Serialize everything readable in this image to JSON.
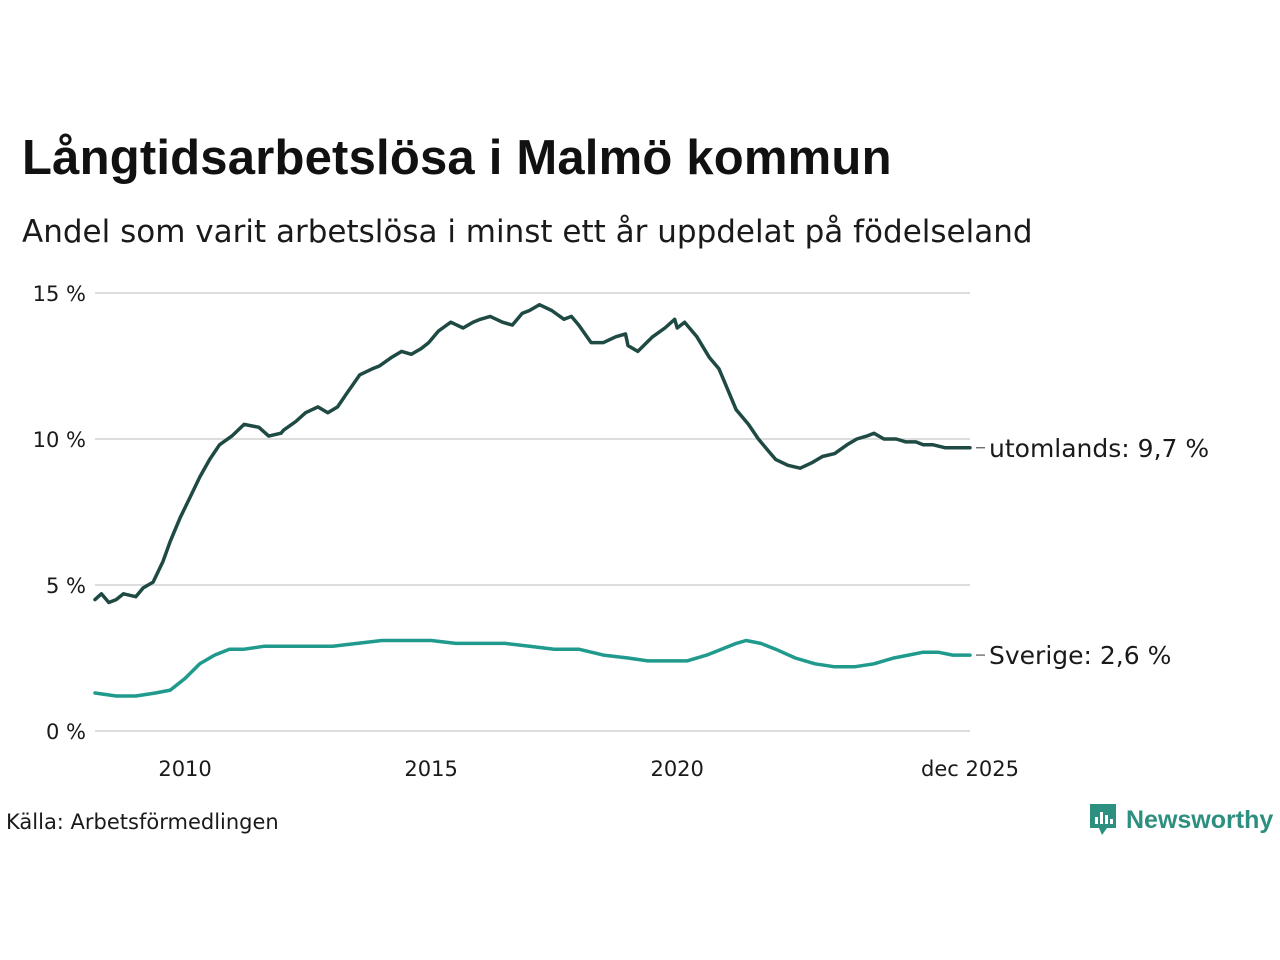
{
  "header": {
    "title": "Långtidsarbetslösa i Malmö kommun",
    "subtitle": "Andel som varit arbetslösa i minst ett år uppdelat på födelseland"
  },
  "footer": {
    "source": "Källa: Arbetsförmedlingen",
    "brand": "Newsworthy"
  },
  "colors": {
    "utomlands": "#1f4a44",
    "sverige": "#1f9a8c",
    "grid": "#dddddd",
    "brand": "#2d8f7f"
  },
  "chart_data": {
    "type": "line",
    "title": "Långtidsarbetslösa i Malmö kommun",
    "subtitle": "Andel som varit arbetslösa i minst ett år uppdelat på födelseland",
    "xlabel": "",
    "ylabel": "",
    "x_range": [
      2008.17,
      2025.95
    ],
    "ylim": [
      0,
      15
    ],
    "y_ticks": [
      {
        "value": 0,
        "label": "0 %"
      },
      {
        "value": 5,
        "label": "5 %"
      },
      {
        "value": 10,
        "label": "10 %"
      },
      {
        "value": 15,
        "label": "15 %"
      }
    ],
    "x_ticks": [
      {
        "value": 2010,
        "label": "2010"
      },
      {
        "value": 2015,
        "label": "2015"
      },
      {
        "value": 2020,
        "label": "2020"
      },
      {
        "value": 2025.95,
        "label": "dec 2025"
      }
    ],
    "grid": true,
    "series": [
      {
        "name": "utomlands",
        "end_label": "utomlands: 9,7 %",
        "x": [
          2008.17,
          2008.3,
          2008.45,
          2008.6,
          2008.75,
          2009.0,
          2009.15,
          2009.35,
          2009.55,
          2009.7,
          2009.9,
          2010.1,
          2010.3,
          2010.5,
          2010.7,
          2010.95,
          2011.2,
          2011.5,
          2011.7,
          2011.95,
          2012.0,
          2012.25,
          2012.45,
          2012.7,
          2012.9,
          2013.1,
          2013.3,
          2013.55,
          2013.8,
          2013.95,
          2014.2,
          2014.4,
          2014.6,
          2014.8,
          2014.95,
          2015.15,
          2015.4,
          2015.65,
          2015.85,
          2016.0,
          2016.2,
          2016.45,
          2016.65,
          2016.85,
          2017.0,
          2017.2,
          2017.45,
          2017.7,
          2017.85,
          2018.0,
          2018.25,
          2018.5,
          2018.75,
          2018.95,
          2019.0,
          2019.2,
          2019.5,
          2019.75,
          2019.95,
          2020.0,
          2020.15,
          2020.4,
          2020.65,
          2020.85,
          2021.0,
          2021.2,
          2021.45,
          2021.65,
          2021.85,
          2022.0,
          2022.25,
          2022.5,
          2022.75,
          2022.95,
          2023.2,
          2023.45,
          2023.65,
          2023.85,
          2024.0,
          2024.2,
          2024.45,
          2024.65,
          2024.85,
          2025.0,
          2025.2,
          2025.45,
          2025.65,
          2025.95
        ],
        "values": [
          4.5,
          4.7,
          4.4,
          4.5,
          4.7,
          4.6,
          4.9,
          5.1,
          5.8,
          6.5,
          7.3,
          8.0,
          8.7,
          9.3,
          9.8,
          10.1,
          10.5,
          10.4,
          10.1,
          10.2,
          10.3,
          10.6,
          10.9,
          11.1,
          10.9,
          11.1,
          11.6,
          12.2,
          12.4,
          12.5,
          12.8,
          13.0,
          12.9,
          13.1,
          13.3,
          13.7,
          14.0,
          13.8,
          14.0,
          14.1,
          14.2,
          14.0,
          13.9,
          14.3,
          14.4,
          14.6,
          14.4,
          14.1,
          14.2,
          13.9,
          13.3,
          13.3,
          13.5,
          13.6,
          13.2,
          13.0,
          13.5,
          13.8,
          14.1,
          13.8,
          14.0,
          13.5,
          12.8,
          12.4,
          11.8,
          11.0,
          10.5,
          10.0,
          9.6,
          9.3,
          9.1,
          9.0,
          9.2,
          9.4,
          9.5,
          9.8,
          10.0,
          10.1,
          10.2,
          10.0,
          10.0,
          9.9,
          9.9,
          9.8,
          9.8,
          9.7,
          9.7,
          9.7
        ]
      },
      {
        "name": "Sverige",
        "end_label": "Sverige: 2,6 %",
        "x": [
          2008.17,
          2008.6,
          2009.0,
          2009.4,
          2009.7,
          2010.0,
          2010.3,
          2010.6,
          2010.9,
          2011.2,
          2011.6,
          2012.0,
          2012.5,
          2013.0,
          2013.5,
          2014.0,
          2014.5,
          2015.0,
          2015.5,
          2016.0,
          2016.5,
          2017.0,
          2017.5,
          2018.0,
          2018.5,
          2019.0,
          2019.4,
          2019.8,
          2020.2,
          2020.6,
          2020.9,
          2021.2,
          2021.4,
          2021.7,
          2022.0,
          2022.4,
          2022.8,
          2023.2,
          2023.6,
          2024.0,
          2024.4,
          2024.7,
          2025.0,
          2025.3,
          2025.6,
          2025.95
        ],
        "values": [
          1.3,
          1.2,
          1.2,
          1.3,
          1.4,
          1.8,
          2.3,
          2.6,
          2.8,
          2.8,
          2.9,
          2.9,
          2.9,
          2.9,
          3.0,
          3.1,
          3.1,
          3.1,
          3.0,
          3.0,
          3.0,
          2.9,
          2.8,
          2.8,
          2.6,
          2.5,
          2.4,
          2.4,
          2.4,
          2.6,
          2.8,
          3.0,
          3.1,
          3.0,
          2.8,
          2.5,
          2.3,
          2.2,
          2.2,
          2.3,
          2.5,
          2.6,
          2.7,
          2.7,
          2.6,
          2.6
        ]
      }
    ]
  }
}
